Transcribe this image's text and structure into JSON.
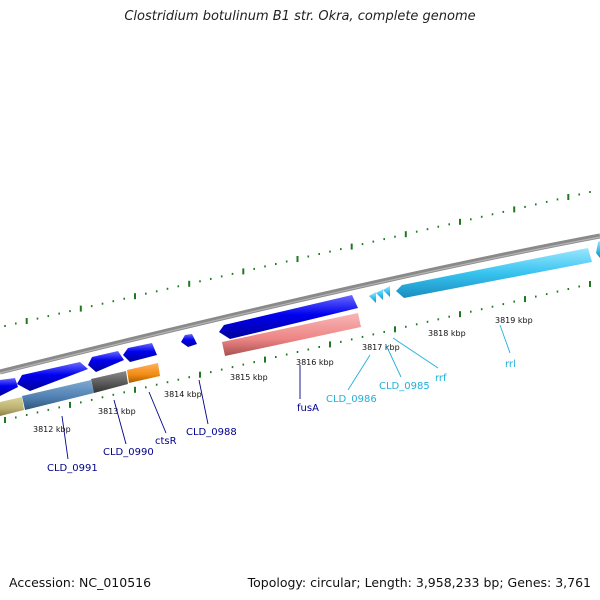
{
  "title": "Clostridium botulinum B1 str. Okra, complete genome",
  "footer": {
    "accession": "Accession: NC_010516",
    "topology": "Topology: circular; Length: 3,958,233 bp; Genes: 3,761"
  },
  "colors": {
    "backbone": "#8a8a8a",
    "tick": "#1f7a1f",
    "cds": "#0000ee",
    "rna": "#33bbee",
    "gene_label": "#00008b",
    "rna_label": "#20b0d8"
  },
  "kbp_labels": [
    "3812 kbp",
    "3813 kbp",
    "3814 kbp",
    "3815 kbp",
    "3816 kbp",
    "3817 kbp",
    "3818 kbp",
    "3819 kbp"
  ],
  "gene_labels": [
    {
      "text": "CLD_0991",
      "kind": "cds"
    },
    {
      "text": "CLD_0990",
      "kind": "cds"
    },
    {
      "text": "ctsR",
      "kind": "cds"
    },
    {
      "text": "CLD_0988",
      "kind": "cds"
    },
    {
      "text": "fusA",
      "kind": "cds"
    },
    {
      "text": "CLD_0986",
      "kind": "rna"
    },
    {
      "text": "CLD_0985",
      "kind": "rna"
    },
    {
      "text": "rrf",
      "kind": "rna"
    },
    {
      "text": "rrl",
      "kind": "rna"
    }
  ]
}
